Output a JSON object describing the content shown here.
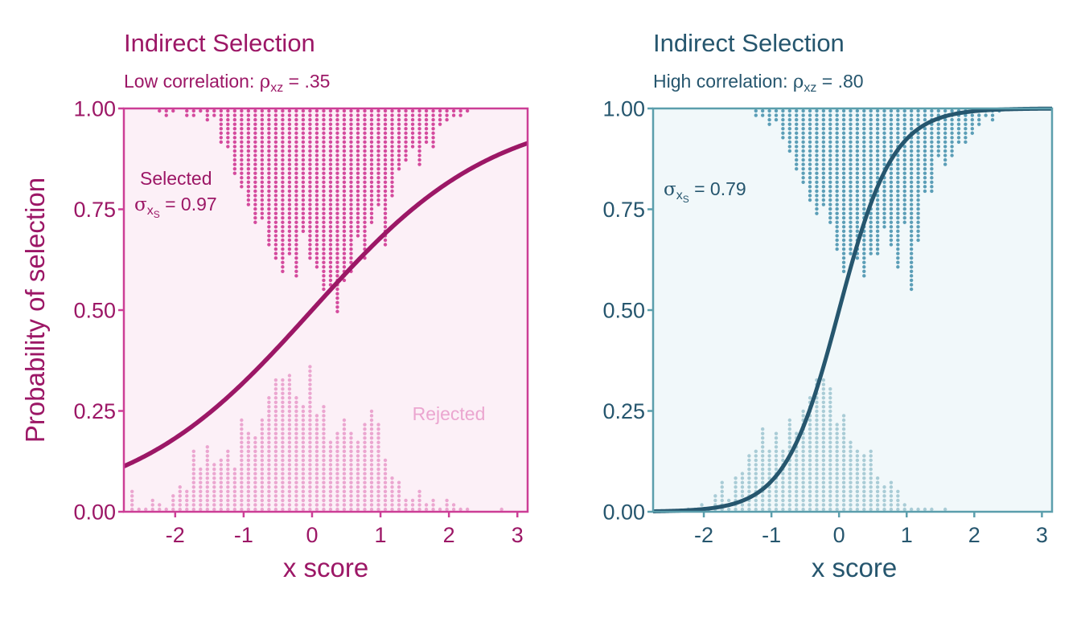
{
  "chart_data": [
    {
      "type": "scatter",
      "title": "Indirect Selection",
      "subtitle": {
        "prefix": "Low correlation: ",
        "symbol": "ρ",
        "subscript": "xz",
        "suffix": " = .35"
      },
      "xlabel": "x score",
      "ylabel": "Probability of selection",
      "xlim": [
        -2.75,
        3.15
      ],
      "ylim": [
        0,
        1
      ],
      "x_ticks": [
        "-2",
        "-1",
        "0",
        "1",
        "2",
        "3"
      ],
      "x_tick_values": [
        -2,
        -1,
        0,
        1,
        2,
        3
      ],
      "y_ticks": [
        "0.00",
        "0.25",
        "0.50",
        "0.75",
        "1.00"
      ],
      "y_tick_values": [
        0,
        0.25,
        0.5,
        0.75,
        1
      ],
      "curve": {
        "type": "logistic",
        "slope": 0.75,
        "midpoint": 0
      },
      "selected_dots": {
        "bin_centers": [
          -2.23,
          -2.13,
          -2.03,
          -1.93,
          -1.83,
          -1.73,
          -1.63,
          -1.53,
          -1.43,
          -1.33,
          -1.23,
          -1.13,
          -1.03,
          -0.93,
          -0.83,
          -0.73,
          -0.63,
          -0.53,
          -0.43,
          -0.33,
          -0.23,
          -0.13,
          -0.03,
          0.07,
          0.17,
          0.27,
          0.37,
          0.47,
          0.57,
          0.67,
          0.77,
          0.87,
          0.97,
          1.07,
          1.17,
          1.27,
          1.37,
          1.47,
          1.57,
          1.67,
          1.77,
          1.87,
          1.97,
          2.07,
          2.17,
          2.27
        ],
        "counts": [
          1,
          2,
          1,
          0,
          2,
          2,
          1,
          3,
          2,
          8,
          9,
          15,
          18,
          22,
          26,
          25,
          31,
          34,
          37,
          33,
          38,
          28,
          34,
          36,
          41,
          40,
          46,
          39,
          37,
          29,
          34,
          26,
          22,
          31,
          20,
          14,
          12,
          9,
          13,
          8,
          9,
          4,
          3,
          2,
          2,
          1
        ]
      },
      "rejected_dots": {
        "bin_centers": [
          -2.63,
          -2.53,
          -2.43,
          -2.33,
          -2.23,
          -2.13,
          -2.03,
          -1.93,
          -1.83,
          -1.73,
          -1.63,
          -1.53,
          -1.43,
          -1.33,
          -1.23,
          -1.13,
          -1.03,
          -0.93,
          -0.83,
          -0.73,
          -0.63,
          -0.53,
          -0.43,
          -0.33,
          -0.23,
          -0.13,
          -0.03,
          0.07,
          0.17,
          0.27,
          0.37,
          0.47,
          0.57,
          0.67,
          0.77,
          0.87,
          0.97,
          1.07,
          1.17,
          1.27,
          1.37,
          1.47,
          1.57,
          1.67,
          1.77,
          1.87,
          1.97,
          2.07,
          2.17,
          2.27,
          2.37,
          2.47,
          2.57,
          2.67,
          2.77,
          2.87
        ],
        "counts": [
          5,
          1,
          1,
          3,
          2,
          1,
          4,
          6,
          5,
          14,
          10,
          15,
          11,
          12,
          14,
          10,
          21,
          18,
          17,
          21,
          26,
          30,
          30,
          31,
          26,
          24,
          33,
          22,
          24,
          16,
          18,
          21,
          18,
          16,
          20,
          23,
          20,
          12,
          8,
          7,
          3,
          3,
          5,
          2,
          3,
          1,
          3,
          2,
          1,
          1,
          0,
          0,
          0,
          0,
          1,
          0
        ]
      },
      "selected_label": "Selected",
      "sigma_symbol": "σ",
      "sigma_subscript": "x",
      "sigma_subsubscript": "S",
      "sigma_value": " = 0.97",
      "rejected_label": "Rejected",
      "colors": {
        "main": "#9c1766",
        "frame": "#cc3e96",
        "selected": "#d44a9d",
        "rejected": "#eba6d0",
        "background": "#fcf0f7"
      }
    },
    {
      "type": "scatter",
      "title": "Indirect Selection",
      "subtitle": {
        "prefix": "High correlation: ",
        "symbol": "ρ",
        "subscript": "xz",
        "suffix": " = .80"
      },
      "xlabel": "x score",
      "ylabel": "",
      "xlim": [
        -2.75,
        3.15
      ],
      "ylim": [
        0,
        1
      ],
      "x_ticks": [
        "-2",
        "-1",
        "0",
        "1",
        "2",
        "3"
      ],
      "x_tick_values": [
        -2,
        -1,
        0,
        1,
        2,
        3
      ],
      "y_ticks": [
        "0.00",
        "0.25",
        "0.50",
        "0.75",
        "1.00"
      ],
      "y_tick_values": [
        0,
        0.25,
        0.5,
        0.75,
        1
      ],
      "curve": {
        "type": "logistic",
        "slope": 2.5,
        "midpoint": 0
      },
      "selected_dots": {
        "bin_centers": [
          -1.23,
          -1.13,
          -1.03,
          -0.93,
          -0.83,
          -0.73,
          -0.63,
          -0.53,
          -0.43,
          -0.33,
          -0.23,
          -0.13,
          -0.03,
          0.07,
          0.17,
          0.27,
          0.37,
          0.47,
          0.57,
          0.67,
          0.77,
          0.87,
          0.97,
          1.07,
          1.17,
          1.27,
          1.37,
          1.47,
          1.57,
          1.67,
          1.77,
          1.87,
          1.97,
          2.07,
          2.17,
          2.27,
          2.37
        ],
        "counts": [
          2,
          2,
          4,
          3,
          7,
          10,
          14,
          17,
          21,
          24,
          22,
          26,
          32,
          37,
          33,
          34,
          38,
          33,
          33,
          27,
          31,
          36,
          26,
          41,
          30,
          19,
          19,
          11,
          13,
          11,
          8,
          8,
          6,
          4,
          2,
          3,
          1
        ]
      },
      "rejected_dots": {
        "bin_centers": [
          -2.23,
          -2.13,
          -2.03,
          -1.93,
          -1.83,
          -1.73,
          -1.63,
          -1.53,
          -1.43,
          -1.33,
          -1.23,
          -1.13,
          -1.03,
          -0.93,
          -0.83,
          -0.73,
          -0.63,
          -0.53,
          -0.43,
          -0.33,
          -0.23,
          -0.13,
          -0.03,
          0.07,
          0.17,
          0.27,
          0.37,
          0.47,
          0.57,
          0.67,
          0.77,
          0.87,
          0.97,
          1.07,
          1.17,
          1.27,
          1.37,
          1.47,
          1.57
        ],
        "counts": [
          1,
          1,
          2,
          1,
          4,
          7,
          3,
          8,
          9,
          13,
          14,
          19,
          14,
          18,
          14,
          21,
          18,
          23,
          26,
          30,
          30,
          28,
          20,
          22,
          16,
          14,
          13,
          14,
          8,
          6,
          7,
          5,
          2,
          1,
          1,
          1,
          1,
          0,
          1
        ]
      },
      "sigma_symbol": "σ",
      "sigma_subscript": "x",
      "sigma_subsubscript": "S",
      "sigma_value": " = 0.79",
      "colors": {
        "main": "#26566e",
        "frame": "#5b9eac",
        "selected": "#5b9eb7",
        "rejected": "#a9ccd6",
        "background": "#f1f8fa"
      }
    }
  ]
}
